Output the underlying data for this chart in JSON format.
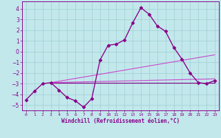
{
  "xlabel": "Windchill (Refroidissement éolien,°C)",
  "xlim": [
    -0.5,
    23.5
  ],
  "ylim": [
    -5.5,
    4.7
  ],
  "xticks": [
    0,
    1,
    2,
    3,
    4,
    5,
    6,
    7,
    8,
    9,
    10,
    11,
    12,
    13,
    14,
    15,
    16,
    17,
    18,
    19,
    20,
    21,
    22,
    23
  ],
  "yticks": [
    -5,
    -4,
    -3,
    -2,
    -1,
    0,
    1,
    2,
    3,
    4
  ],
  "bg_color": "#c2e8ec",
  "grid_color": "#a0cdd1",
  "line_color": "#880088",
  "line_color2": "#cc44cc",
  "curve1_x": [
    0,
    1,
    2,
    3,
    4,
    5,
    6,
    7,
    8,
    9,
    10,
    11,
    12,
    13,
    14,
    15,
    16,
    17,
    18,
    19,
    20,
    21,
    22,
    23
  ],
  "curve1_y": [
    -4.5,
    -3.7,
    -3.0,
    -2.9,
    -3.6,
    -4.3,
    -4.6,
    -5.2,
    -4.4,
    -0.8,
    0.6,
    0.7,
    1.1,
    2.7,
    4.1,
    3.5,
    2.4,
    1.9,
    0.4,
    -0.7,
    -2.0,
    -2.9,
    -3.0,
    -2.7
  ],
  "line1_x": [
    3,
    23
  ],
  "line1_y": [
    -2.9,
    -2.9
  ],
  "line2_x": [
    3,
    23
  ],
  "line2_y": [
    -2.9,
    -2.55
  ],
  "line3_x": [
    3,
    23
  ],
  "line3_y": [
    -2.9,
    -0.3
  ],
  "marker_size": 2.5,
  "linewidth": 1.0
}
